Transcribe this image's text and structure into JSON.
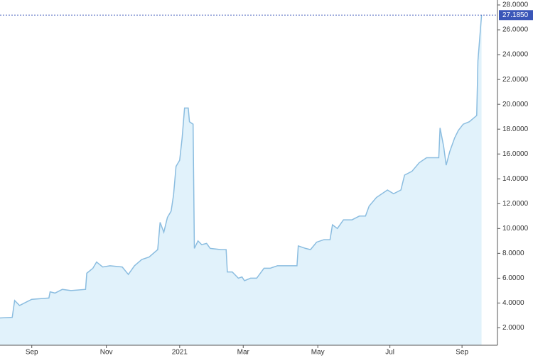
{
  "chart_data": {
    "type": "area",
    "color": "#8bbde0",
    "fill": "#e1f2fb",
    "x": [
      0,
      10,
      12,
      16,
      22,
      26,
      40,
      41,
      45,
      51,
      58,
      70,
      71,
      76,
      79,
      84,
      90,
      100,
      105,
      110,
      116,
      122,
      129,
      131,
      134,
      137,
      140,
      142,
      144,
      147,
      149,
      151,
      154,
      155,
      158,
      159,
      162,
      165,
      169,
      172,
      181,
      185,
      186,
      190,
      195,
      198,
      200,
      205,
      210,
      216,
      221,
      227,
      233,
      243,
      244,
      250,
      254,
      259,
      265,
      270,
      272,
      276,
      281,
      288,
      294,
      299,
      302,
      308,
      317,
      322,
      328,
      331,
      337,
      343,
      349,
      353,
      359,
      360,
      363,
      365,
      368,
      372,
      375,
      379,
      384,
      390,
      391,
      394
    ],
    "values": [
      2.8,
      2.85,
      4.2,
      3.8,
      4.1,
      4.3,
      4.4,
      4.9,
      4.8,
      5.1,
      5.0,
      5.1,
      6.4,
      6.8,
      7.3,
      6.9,
      7.0,
      6.9,
      6.3,
      7.0,
      7.5,
      7.7,
      8.3,
      10.5,
      9.7,
      10.9,
      11.4,
      12.7,
      15.0,
      15.5,
      17.3,
      19.7,
      19.7,
      18.6,
      18.4,
      8.4,
      9.0,
      8.7,
      8.8,
      8.4,
      8.3,
      8.3,
      6.5,
      6.5,
      6.0,
      6.1,
      5.8,
      6.0,
      6.0,
      6.8,
      6.8,
      7.0,
      7.0,
      7.0,
      8.6,
      8.4,
      8.3,
      8.9,
      9.1,
      9.1,
      10.3,
      10.0,
      10.7,
      10.7,
      11.0,
      11.0,
      11.8,
      12.5,
      13.1,
      12.8,
      13.1,
      14.3,
      14.6,
      15.3,
      15.7,
      15.7,
      15.7,
      18.1,
      16.6,
      15.1,
      16.2,
      17.3,
      17.9,
      18.4,
      18.6,
      19.1,
      23.5,
      27.185
    ],
    "xlim": [
      0,
      407
    ],
    "xticks": [
      {
        "value": 26,
        "label": "Sep"
      },
      {
        "value": 87,
        "label": "Nov"
      },
      {
        "value": 147,
        "label": "2021"
      },
      {
        "value": 199,
        "label": "Mar"
      },
      {
        "value": 260,
        "label": "May"
      },
      {
        "value": 319,
        "label": "Jul"
      },
      {
        "value": 378,
        "label": "Sep"
      }
    ],
    "ylim": [
      0.6,
      28.4
    ],
    "yticks": [
      {
        "value": 2,
        "label": "2.0000"
      },
      {
        "value": 4,
        "label": "4.0000"
      },
      {
        "value": 6,
        "label": "6.0000"
      },
      {
        "value": 8,
        "label": "8.0000"
      },
      {
        "value": 10,
        "label": "10.0000"
      },
      {
        "value": 12,
        "label": "12.0000"
      },
      {
        "value": 14,
        "label": "14.0000"
      },
      {
        "value": 16,
        "label": "16.0000"
      },
      {
        "value": 18,
        "label": "18.0000"
      },
      {
        "value": 20,
        "label": "20.0000"
      },
      {
        "value": 22,
        "label": "22.0000"
      },
      {
        "value": 24,
        "label": "24.0000"
      },
      {
        "value": 26,
        "label": "26.0000"
      },
      {
        "value": 28,
        "label": "28.0000"
      }
    ],
    "current_value": {
      "value": 27.185,
      "label": "27.1850"
    },
    "current_color": "#3a56b8"
  }
}
